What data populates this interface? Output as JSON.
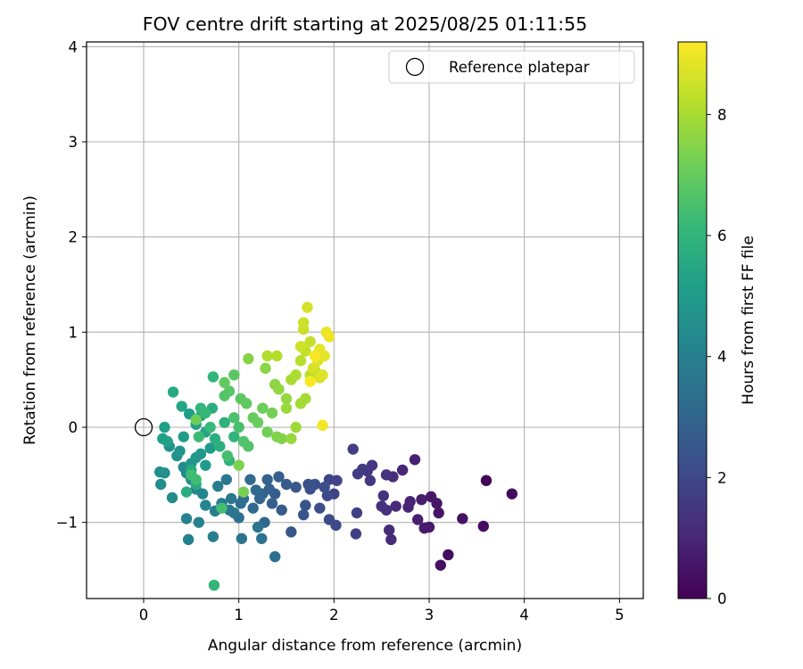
{
  "chart_data": {
    "type": "scatter",
    "title": "FOV centre drift starting at 2025/08/25 01:11:55",
    "xlabel": "Angular distance from reference (arcmin)",
    "ylabel": "Rotation from reference (arcmin)",
    "xlim": [
      -0.6,
      5.25
    ],
    "ylim": [
      -1.8,
      4.05
    ],
    "xticks": [
      0,
      1,
      2,
      3,
      4,
      5
    ],
    "yticks": [
      -1,
      0,
      1,
      2,
      3,
      4
    ],
    "xtick_labels": [
      "0",
      "1",
      "2",
      "3",
      "4",
      "5"
    ],
    "ytick_labels": [
      "−1",
      "0",
      "1",
      "2",
      "3",
      "4"
    ],
    "grid": true,
    "legend": {
      "placement": "upper-right",
      "entries": [
        "Reference platepar"
      ]
    },
    "reference_point": {
      "x": 0,
      "y": 0
    },
    "colorbar": {
      "label": "Hours from first FF file",
      "colormap": "viridis",
      "range": [
        0,
        9.2
      ],
      "ticks": [
        0,
        2,
        4,
        6,
        8
      ],
      "tick_labels": [
        "0",
        "2",
        "4",
        "6",
        "8"
      ]
    },
    "colormap_stops": [
      "#440154",
      "#482878",
      "#3e4989",
      "#31688e",
      "#26828e",
      "#1f9e89",
      "#35b779",
      "#6ece58",
      "#b5de2b",
      "#fde725"
    ],
    "points_xyh": [
      [
        3.6,
        -0.56,
        0.1
      ],
      [
        3.87,
        -0.7,
        0.2
      ],
      [
        3.57,
        -1.04,
        0.3
      ],
      [
        3.2,
        -1.34,
        0.35
      ],
      [
        3.12,
        -1.45,
        0.4
      ],
      [
        3.35,
        -0.96,
        0.45
      ],
      [
        3.1,
        -0.9,
        0.5
      ],
      [
        3.08,
        -0.8,
        0.55
      ],
      [
        3.02,
        -0.73,
        0.6
      ],
      [
        3.0,
        -1.05,
        0.65
      ],
      [
        2.95,
        -1.06,
        0.7
      ],
      [
        2.92,
        -0.76,
        0.75
      ],
      [
        2.88,
        -0.97,
        0.8
      ],
      [
        2.85,
        -0.34,
        0.85
      ],
      [
        2.8,
        -0.78,
        0.9
      ],
      [
        2.78,
        -0.84,
        0.95
      ],
      [
        2.72,
        -0.45,
        1.0
      ],
      [
        2.65,
        -0.83,
        1.05
      ],
      [
        2.6,
        -1.18,
        1.1
      ],
      [
        2.58,
        -1.08,
        1.15
      ],
      [
        2.62,
        -0.52,
        1.2
      ],
      [
        2.55,
        -0.87,
        1.25
      ],
      [
        2.5,
        -0.83,
        1.3
      ],
      [
        2.55,
        -0.5,
        1.35
      ],
      [
        2.52,
        -0.72,
        1.4
      ],
      [
        2.4,
        -0.4,
        1.45
      ],
      [
        2.35,
        -0.46,
        1.5
      ],
      [
        2.38,
        -0.56,
        1.55
      ],
      [
        2.3,
        -0.44,
        1.6
      ],
      [
        2.25,
        -0.49,
        1.65
      ],
      [
        2.2,
        -0.23,
        1.7
      ],
      [
        2.23,
        -1.12,
        1.75
      ],
      [
        2.24,
        -0.9,
        1.8
      ],
      [
        2.03,
        -0.56,
        1.85
      ],
      [
        2.0,
        -0.7,
        1.9
      ],
      [
        1.95,
        -0.55,
        1.95
      ],
      [
        1.93,
        -0.72,
        2.0
      ],
      [
        2.02,
        -1.03,
        2.05
      ],
      [
        1.95,
        -0.97,
        2.1
      ],
      [
        1.85,
        -0.85,
        2.15
      ],
      [
        1.9,
        -0.63,
        2.2
      ],
      [
        1.8,
        -0.6,
        2.25
      ],
      [
        1.75,
        -0.65,
        2.3
      ],
      [
        1.73,
        -0.6,
        2.35
      ],
      [
        1.7,
        -0.82,
        2.4
      ],
      [
        1.68,
        -0.92,
        2.45
      ],
      [
        1.6,
        -0.63,
        2.5
      ],
      [
        1.55,
        -1.1,
        2.55
      ],
      [
        1.5,
        -0.6,
        2.6
      ],
      [
        1.45,
        -0.87,
        2.65
      ],
      [
        1.42,
        -0.52,
        2.7
      ],
      [
        1.38,
        -0.7,
        2.75
      ],
      [
        1.35,
        -0.8,
        2.8
      ],
      [
        1.32,
        -0.65,
        2.85
      ],
      [
        1.3,
        -0.55,
        2.9
      ],
      [
        1.25,
        -0.7,
        2.95
      ],
      [
        1.22,
        -0.75,
        3.0
      ],
      [
        1.27,
        -1.0,
        3.05
      ],
      [
        1.18,
        -0.66,
        3.1
      ],
      [
        1.15,
        -0.85,
        3.15
      ],
      [
        1.12,
        -0.55,
        3.2
      ],
      [
        1.05,
        -0.75,
        3.25
      ],
      [
        1.02,
        -0.8,
        3.3
      ],
      [
        1.0,
        -0.95,
        3.35
      ],
      [
        1.38,
        -1.36,
        3.4
      ],
      [
        1.24,
        -1.17,
        3.45
      ],
      [
        1.2,
        -1.05,
        3.5
      ],
      [
        1.03,
        -1.17,
        3.55
      ],
      [
        0.95,
        -0.9,
        3.6
      ],
      [
        0.9,
        -0.87,
        3.65
      ],
      [
        0.92,
        -0.75,
        3.7
      ],
      [
        0.87,
        -0.55,
        3.75
      ],
      [
        0.82,
        -0.8,
        3.8
      ],
      [
        0.78,
        -0.62,
        3.85
      ],
      [
        0.75,
        -0.88,
        3.9
      ],
      [
        0.73,
        -1.15,
        3.95
      ],
      [
        0.58,
        -1.0,
        4.0
      ],
      [
        0.47,
        -1.18,
        4.05
      ],
      [
        0.45,
        -0.96,
        4.1
      ],
      [
        0.65,
        -0.82,
        4.15
      ],
      [
        0.62,
        -0.7,
        4.2
      ],
      [
        0.55,
        -0.65,
        4.25
      ],
      [
        0.5,
        -0.55,
        4.3
      ],
      [
        0.45,
        -0.48,
        4.35
      ],
      [
        0.42,
        -0.42,
        4.4
      ],
      [
        0.3,
        -0.74,
        4.45
      ],
      [
        0.18,
        -0.6,
        4.5
      ],
      [
        0.17,
        -0.47,
        4.55
      ],
      [
        0.22,
        -0.48,
        4.6
      ],
      [
        0.27,
        -0.2,
        4.65
      ],
      [
        0.35,
        -0.3,
        4.7
      ],
      [
        0.38,
        -0.25,
        4.75
      ],
      [
        0.5,
        -0.38,
        4.8
      ],
      [
        0.55,
        -0.32,
        4.85
      ],
      [
        0.6,
        -0.28,
        4.9
      ],
      [
        0.65,
        -0.4,
        4.95
      ],
      [
        0.7,
        -0.22,
        5.0
      ],
      [
        0.42,
        -0.1,
        5.05
      ],
      [
        0.48,
        0.14,
        5.1
      ],
      [
        0.22,
        0.0,
        5.15
      ],
      [
        0.2,
        -0.12,
        5.2
      ],
      [
        0.25,
        -0.15,
        5.25
      ],
      [
        0.55,
        0.03,
        5.3
      ],
      [
        0.6,
        0.12,
        5.35
      ],
      [
        0.65,
        -0.05,
        5.4
      ],
      [
        0.4,
        0.22,
        5.45
      ],
      [
        0.31,
        0.37,
        5.5
      ],
      [
        0.5,
        -0.45,
        5.55
      ],
      [
        0.55,
        -0.6,
        5.6
      ],
      [
        0.45,
        -0.68,
        5.65
      ],
      [
        0.72,
        0.2,
        5.7
      ],
      [
        0.75,
        -0.12,
        5.75
      ],
      [
        0.8,
        -0.2,
        5.8
      ],
      [
        0.85,
        0.05,
        5.85
      ],
      [
        0.9,
        -0.35,
        5.9
      ],
      [
        0.95,
        -0.1,
        5.95
      ],
      [
        0.73,
        0.53,
        6.0
      ],
      [
        0.74,
        -1.66,
        6.05
      ],
      [
        0.6,
        0.2,
        6.1
      ],
      [
        0.65,
        0.15,
        6.15
      ],
      [
        0.7,
        0.0,
        6.2
      ],
      [
        0.58,
        -0.1,
        6.25
      ],
      [
        0.55,
        -0.55,
        6.3
      ],
      [
        0.5,
        -0.5,
        6.35
      ],
      [
        0.82,
        -0.85,
        6.4
      ],
      [
        0.88,
        -0.3,
        6.45
      ],
      [
        1.0,
        0.0,
        6.5
      ],
      [
        0.95,
        0.1,
        6.55
      ],
      [
        1.05,
        -0.15,
        6.6
      ],
      [
        1.1,
        -0.2,
        6.65
      ],
      [
        0.85,
        0.33,
        6.7
      ],
      [
        0.9,
        0.38,
        6.75
      ],
      [
        0.95,
        0.55,
        6.8
      ],
      [
        1.02,
        0.3,
        6.85
      ],
      [
        1.08,
        0.25,
        6.9
      ],
      [
        0.85,
        0.47,
        6.95
      ],
      [
        1.15,
        0.1,
        7.0
      ],
      [
        1.2,
        0.05,
        7.05
      ],
      [
        1.25,
        0.2,
        7.1
      ],
      [
        0.55,
        0.08,
        7.15
      ],
      [
        1.3,
        -0.05,
        7.2
      ],
      [
        1.35,
        0.15,
        7.25
      ],
      [
        1.05,
        -0.68,
        7.3
      ],
      [
        1.0,
        -0.4,
        7.35
      ],
      [
        1.4,
        -0.1,
        7.4
      ],
      [
        1.45,
        -0.12,
        7.45
      ],
      [
        1.1,
        0.72,
        7.5
      ],
      [
        1.28,
        0.62,
        7.55
      ],
      [
        1.38,
        0.45,
        7.6
      ],
      [
        1.42,
        0.4,
        7.65
      ],
      [
        1.5,
        0.3,
        7.7
      ],
      [
        1.55,
        -0.12,
        7.75
      ],
      [
        1.5,
        0.2,
        7.8
      ],
      [
        1.6,
        0.0,
        7.85
      ],
      [
        1.65,
        0.25,
        7.9
      ],
      [
        1.7,
        0.3,
        7.95
      ],
      [
        1.55,
        0.5,
        8.0
      ],
      [
        1.6,
        0.55,
        8.05
      ],
      [
        1.3,
        0.75,
        8.1
      ],
      [
        1.4,
        0.75,
        8.15
      ],
      [
        1.65,
        0.7,
        8.2
      ],
      [
        1.75,
        0.55,
        8.25
      ],
      [
        1.8,
        0.6,
        8.3
      ],
      [
        1.7,
        0.8,
        8.35
      ],
      [
        1.75,
        0.9,
        8.4
      ],
      [
        1.68,
        1.03,
        8.45
      ],
      [
        1.68,
        1.1,
        8.5
      ],
      [
        1.65,
        0.85,
        8.55
      ],
      [
        1.72,
        1.26,
        8.6
      ],
      [
        1.78,
        0.62,
        8.65
      ],
      [
        1.85,
        0.52,
        8.7
      ],
      [
        1.88,
        0.55,
        8.75
      ],
      [
        1.83,
        0.7,
        8.8
      ],
      [
        1.9,
        0.75,
        8.85
      ],
      [
        1.85,
        0.82,
        8.9
      ],
      [
        1.92,
        1.0,
        8.95
      ],
      [
        1.95,
        0.95,
        9.0
      ],
      [
        1.88,
        0.02,
        9.05
      ],
      [
        1.8,
        0.75,
        9.1
      ],
      [
        1.75,
        0.48,
        9.15
      ]
    ]
  }
}
